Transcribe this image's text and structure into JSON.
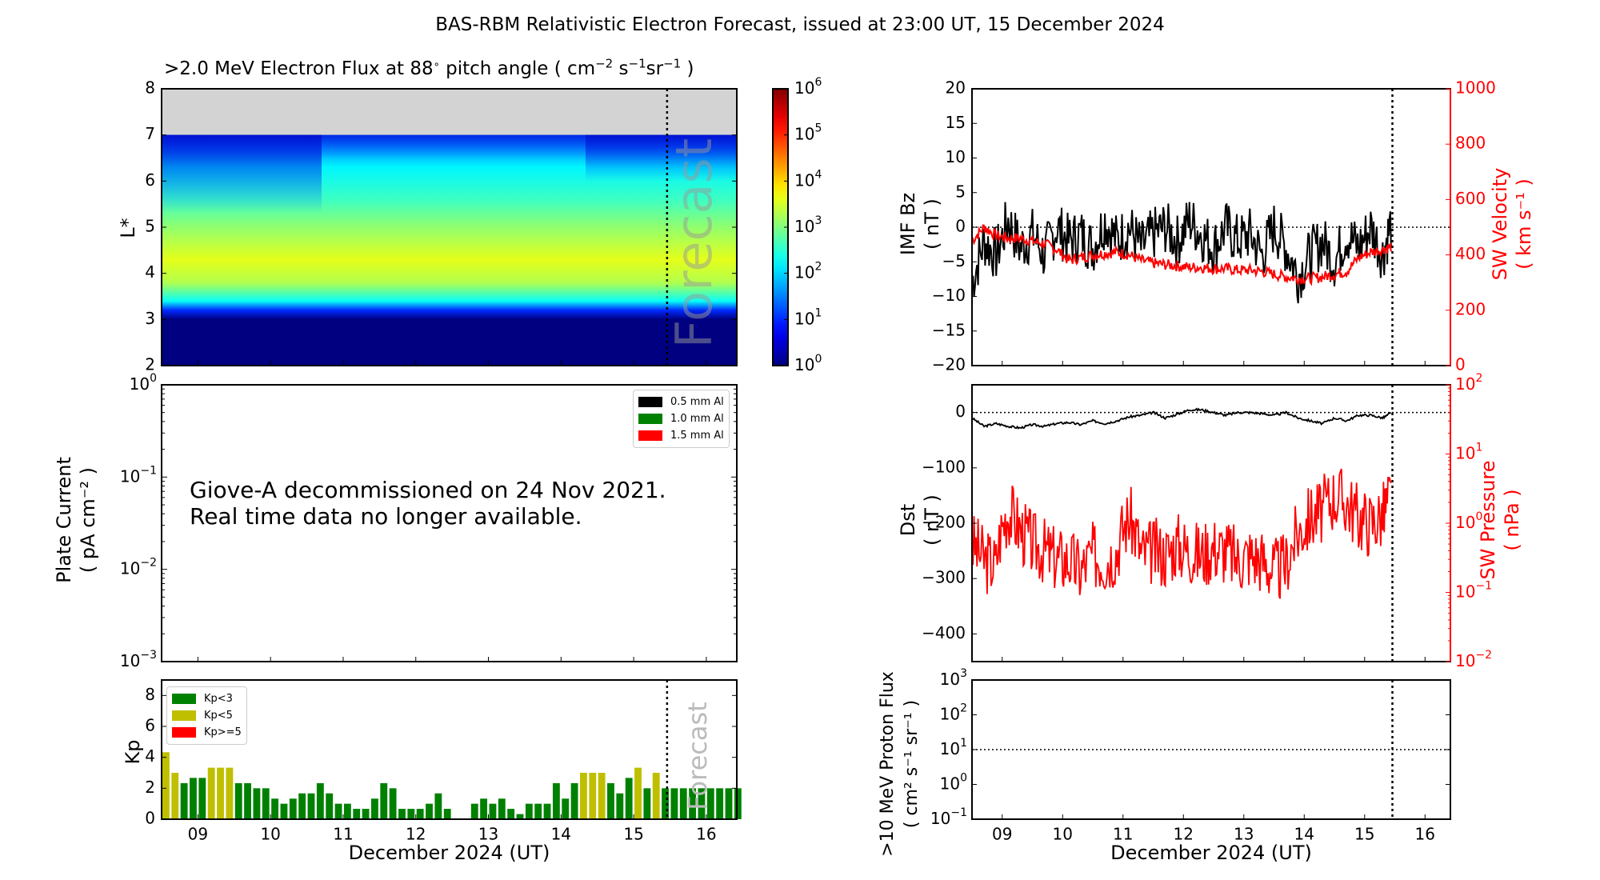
{
  "title": "BAS-RBM Relativistic Electron Forecast, issued at 23:00 UT, 15 December 2024",
  "forecast_watermark": "Forecast",
  "x_axis": {
    "label": "December 2024 (UT)",
    "ticks": [
      "09",
      "10",
      "11",
      "12",
      "13",
      "14",
      "15",
      "16"
    ],
    "range_days": [
      8.5,
      16.42
    ],
    "forecast_start_day": 15.46
  },
  "chart_data": [
    {
      "id": "electron-flux",
      "type": "heatmap",
      "title": ">2.0 MeV Electron Flux at 88° pitch angle ( cm⁻² s⁻¹ sr⁻¹ )",
      "ylabel": "L*",
      "ylim": [
        2,
        8
      ],
      "yticks": [
        2,
        3,
        4,
        5,
        6,
        7,
        8
      ],
      "no_data_above_L": 7,
      "colorbar": {
        "scale": "log",
        "range": [
          1,
          1000000
        ],
        "ticks": [
          "10^0",
          "10^1",
          "10^2",
          "10^3",
          "10^4",
          "10^5",
          "10^6"
        ],
        "colormap": "jet"
      },
      "profile_log10_by_L": [
        {
          "L": 2.0,
          "log10_flux": 0.0
        },
        {
          "L": 3.0,
          "log10_flux": 0.0
        },
        {
          "L": 3.2,
          "log10_flux": 1.0
        },
        {
          "L": 3.4,
          "log10_flux": 2.3
        },
        {
          "L": 3.8,
          "log10_flux": 3.3
        },
        {
          "L": 4.3,
          "log10_flux": 3.6
        },
        {
          "L": 5.0,
          "log10_flux": 3.1
        },
        {
          "L": 5.6,
          "log10_flux": 2.6
        },
        {
          "L": 6.3,
          "log10_flux": 2.2
        },
        {
          "L": 7.0,
          "log10_flux": 1.2
        }
      ]
    },
    {
      "id": "plate-current",
      "type": "line",
      "ylabel": "Plate Current",
      "yunits": "( pA cm⁻² )",
      "yscale": "log",
      "ylim": [
        0.001,
        1
      ],
      "yticks": [
        "10^-3",
        "10^-2",
        "10^-1",
        "10^0"
      ],
      "legend": [
        {
          "label": "0.5 mm Al",
          "color": "#000000"
        },
        {
          "label": "1.0 mm Al",
          "color": "#008000"
        },
        {
          "label": "1.5 mm Al",
          "color": "#ff0000"
        }
      ],
      "legend_position": "top-right",
      "annotation": [
        "Giove-A decommissioned on 24 Nov 2021.",
        "Real time data no longer available."
      ],
      "series": []
    },
    {
      "id": "kp",
      "type": "bar",
      "ylabel": "Kp",
      "ylim": [
        0,
        9
      ],
      "yticks": [
        0,
        2,
        4,
        6,
        8
      ],
      "bin_hours": 3,
      "start_day": 8.5,
      "legend": [
        {
          "label": "Kp<3",
          "color": "#008000"
        },
        {
          "label": "Kp<5",
          "color": "#bfbf00"
        },
        {
          "label": "Kp>=5",
          "color": "#ff0000"
        }
      ],
      "legend_position": "top-left",
      "values": [
        4.33,
        3.0,
        2.33,
        2.67,
        2.67,
        3.33,
        3.33,
        3.33,
        2.33,
        2.33,
        2.0,
        2.0,
        1.33,
        1.0,
        1.33,
        1.67,
        1.67,
        2.33,
        1.67,
        1.0,
        1.0,
        0.67,
        0.67,
        1.33,
        2.33,
        2.0,
        0.67,
        0.67,
        0.67,
        1.0,
        1.67,
        0.67,
        0,
        0,
        1.0,
        1.33,
        1.0,
        1.33,
        0.67,
        0.33,
        1.0,
        1.0,
        1.0,
        2.33,
        1.33,
        2.33,
        3.0,
        3.0,
        3.0,
        2.33,
        1.67,
        2.67,
        3.33,
        2.0,
        3.0,
        2.0,
        2.0,
        2.0,
        2.0,
        2.0,
        2.0,
        2.0,
        2.0,
        2.0
      ]
    },
    {
      "id": "imf-bz-sw-velocity",
      "type": "line",
      "ylabel": "IMF Bz",
      "yunits": "( nT )",
      "ylim": [
        -20,
        20
      ],
      "yticks": [
        -20,
        -15,
        -10,
        -5,
        0,
        5,
        10,
        15,
        20
      ],
      "y2label": "SW Velocity",
      "y2units": "( km s⁻¹ )",
      "y2lim": [
        0,
        1000
      ],
      "y2ticks": [
        0,
        200,
        400,
        600,
        800,
        1000
      ],
      "reference_line_y": 0,
      "series": [
        {
          "name": "IMF Bz",
          "color": "#000000",
          "axis": "left",
          "x": [
            8.5,
            8.7,
            8.9,
            9.1,
            9.3,
            9.5,
            9.7,
            9.9,
            10.1,
            10.3,
            10.5,
            10.7,
            10.9,
            11.1,
            11.3,
            11.5,
            11.7,
            11.9,
            12.1,
            12.3,
            12.5,
            12.7,
            12.9,
            13.1,
            13.3,
            13.5,
            13.7,
            13.9,
            14.1,
            14.3,
            14.5,
            14.7,
            14.9,
            15.1,
            15.3,
            15.45
          ],
          "values": [
            -8,
            -2,
            -4,
            1,
            -3,
            -1,
            -4,
            0,
            -2,
            -1,
            -3,
            1,
            -2,
            0,
            -3,
            -1,
            0,
            -2,
            1,
            -1,
            -3,
            0,
            -2,
            -1,
            -4,
            0,
            -3,
            -7,
            -4,
            -2,
            -5,
            -1,
            -3,
            0,
            -4,
            1
          ]
        },
        {
          "name": "SW Velocity",
          "color": "#ff0000",
          "axis": "right",
          "x": [
            8.5,
            8.7,
            8.9,
            9.1,
            9.3,
            9.5,
            9.7,
            9.9,
            10.1,
            10.3,
            10.5,
            10.7,
            10.9,
            11.1,
            11.3,
            11.5,
            11.7,
            11.9,
            12.1,
            12.3,
            12.5,
            12.7,
            12.9,
            13.1,
            13.3,
            13.5,
            13.7,
            13.9,
            14.1,
            14.3,
            14.5,
            14.7,
            14.9,
            15.1,
            15.3,
            15.45
          ],
          "values": [
            450,
            500,
            470,
            460,
            460,
            450,
            440,
            420,
            380,
            390,
            400,
            405,
            410,
            400,
            380,
            370,
            365,
            360,
            355,
            355,
            350,
            350,
            345,
            345,
            340,
            330,
            320,
            315,
            315,
            320,
            330,
            340,
            390,
            410,
            420,
            430
          ]
        }
      ]
    },
    {
      "id": "dst-sw-pressure",
      "type": "line",
      "ylabel": "Dst",
      "yunits": "( nT )",
      "ylim": [
        -450,
        50
      ],
      "yticks": [
        -400,
        -300,
        -200,
        -100,
        0
      ],
      "y2label": "SW Pressure",
      "y2units": "( nPa )",
      "y2scale": "log",
      "y2lim": [
        0.01,
        100
      ],
      "y2ticks": [
        "10^-2",
        "10^-1",
        "10^0",
        "10^1",
        "10^2"
      ],
      "reference_line_y": 0,
      "series": [
        {
          "name": "Dst",
          "color": "#000000",
          "axis": "left",
          "x": [
            8.5,
            8.7,
            8.9,
            9.1,
            9.3,
            9.5,
            9.7,
            9.9,
            10.1,
            10.3,
            10.5,
            10.7,
            10.9,
            11.1,
            11.3,
            11.5,
            11.7,
            11.9,
            12.1,
            12.3,
            12.5,
            12.7,
            12.9,
            13.1,
            13.3,
            13.5,
            13.7,
            13.9,
            14.1,
            14.3,
            14.5,
            14.7,
            14.9,
            15.1,
            15.3,
            15.45
          ],
          "values": [
            -10,
            -25,
            -20,
            -25,
            -28,
            -22,
            -25,
            -20,
            -18,
            -22,
            -15,
            -20,
            -15,
            -8,
            -5,
            0,
            -10,
            -3,
            5,
            5,
            0,
            -5,
            0,
            0,
            -2,
            -5,
            0,
            -10,
            -15,
            -20,
            -10,
            -15,
            -5,
            -5,
            -10,
            0
          ]
        },
        {
          "name": "SW Pressure",
          "color": "#ff0000",
          "axis": "right",
          "x": [
            8.5,
            8.7,
            8.9,
            9.1,
            9.3,
            9.5,
            9.7,
            9.9,
            10.1,
            10.3,
            10.5,
            10.7,
            10.9,
            11.1,
            11.3,
            11.5,
            11.7,
            11.9,
            12.1,
            12.3,
            12.5,
            12.7,
            12.9,
            13.1,
            13.3,
            13.5,
            13.7,
            13.9,
            14.1,
            14.3,
            14.5,
            14.7,
            14.9,
            15.1,
            15.3,
            15.45
          ],
          "values": [
            0.5,
            0.3,
            0.25,
            1.5,
            0.8,
            0.5,
            0.4,
            0.3,
            0.3,
            0.2,
            0.35,
            0.3,
            0.4,
            1.2,
            0.35,
            0.4,
            0.35,
            0.5,
            0.4,
            0.35,
            0.45,
            0.4,
            0.3,
            0.35,
            0.3,
            0.2,
            0.25,
            0.7,
            1.2,
            1.5,
            2.5,
            2.0,
            1.2,
            1.0,
            1.3,
            2.5
          ]
        }
      ]
    },
    {
      "id": "proton-flux",
      "type": "line",
      "ylabel": ">10 MeV Proton Flux",
      "yunits": "( cm² s⁻¹ sr⁻¹ )",
      "yscale": "log",
      "ylim": [
        0.1,
        1000
      ],
      "yticks": [
        "10^-1",
        "10^0",
        "10^1",
        "10^2",
        "10^3"
      ],
      "threshold_line_y": 10,
      "series": []
    }
  ]
}
